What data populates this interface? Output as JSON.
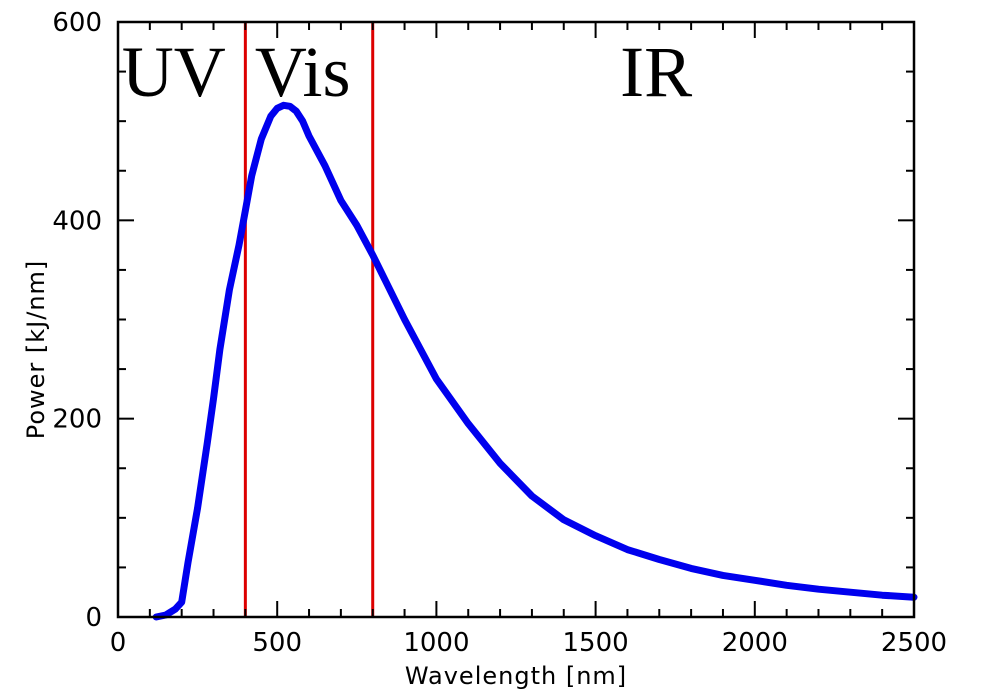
{
  "chart_data": {
    "type": "line",
    "title": "",
    "xlabel": "Wavelength [nm]",
    "ylabel": "Power [kJ/nm]",
    "xlim": [
      0,
      2500
    ],
    "ylim": [
      0,
      600
    ],
    "grid": false,
    "x_ticks": [
      "0",
      "500",
      "1000",
      "1500",
      "2000",
      "2500"
    ],
    "y_ticks": [
      "0",
      "200",
      "400",
      "600"
    ],
    "series": [
      {
        "color": "#0000ee",
        "x": [
          120,
          150,
          180,
          200,
          220,
          250,
          280,
          300,
          320,
          350,
          380,
          400,
          420,
          450,
          480,
          500,
          520,
          540,
          560,
          580,
          600,
          650,
          700,
          750,
          800,
          900,
          1000,
          1100,
          1200,
          1300,
          1400,
          1500,
          1600,
          1700,
          1800,
          1900,
          2000,
          2100,
          2200,
          2300,
          2400,
          2500
        ],
        "y": [
          0,
          2,
          8,
          15,
          55,
          110,
          175,
          220,
          270,
          330,
          375,
          410,
          445,
          482,
          505,
          513,
          516,
          515,
          510,
          500,
          485,
          455,
          420,
          395,
          365,
          300,
          240,
          195,
          155,
          122,
          98,
          82,
          68,
          58,
          49,
          42,
          37,
          32,
          28,
          25,
          22,
          20
        ]
      }
    ],
    "vertical_lines": [
      {
        "x": 400,
        "color": "#dd0000"
      },
      {
        "x": 800,
        "color": "#dd0000"
      }
    ],
    "annotations": [
      {
        "text": "UV",
        "x": 175
      },
      {
        "text": "Vis",
        "x": 580
      },
      {
        "text": "IR",
        "x": 1690
      }
    ]
  }
}
